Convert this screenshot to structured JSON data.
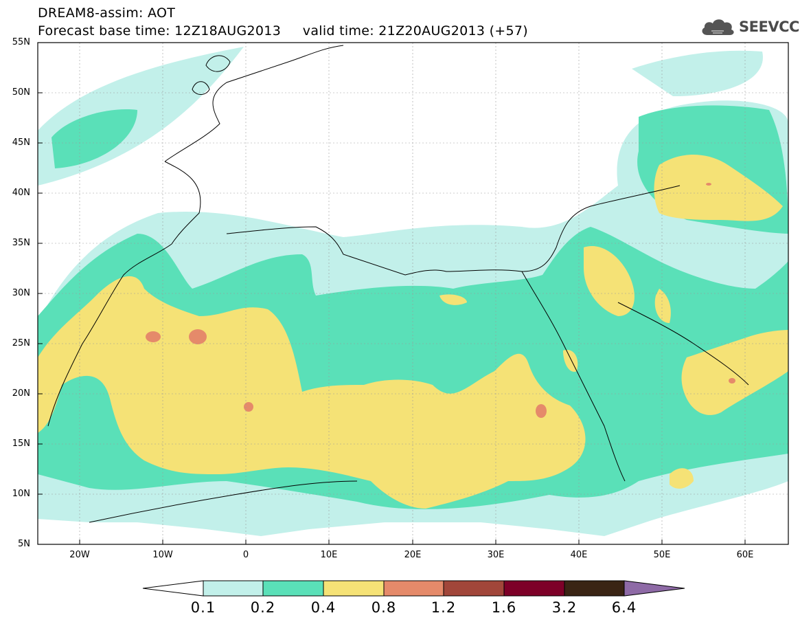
{
  "title": {
    "line1": "DREAM8-assim: AOT",
    "line2": "Forecast base time: 12Z18AUG2013     valid time: 21Z20AUG2013 (+57)"
  },
  "logo": {
    "text": "SEEVCCC",
    "icon": "cloud-icon"
  },
  "map": {
    "projection": "lat-lon",
    "lon_range": [
      -25,
      65
    ],
    "lat_range": [
      5,
      55
    ],
    "grid": true,
    "lat_labels": [
      "55N",
      "50N",
      "45N",
      "40N",
      "35N",
      "30N",
      "25N",
      "20N",
      "15N",
      "10N",
      "5N"
    ],
    "lon_labels": [
      "20W",
      "10W",
      "0",
      "10E",
      "20E",
      "30E",
      "40E",
      "50E",
      "60E"
    ]
  },
  "colorbar": {
    "labels": [
      "0.1",
      "0.2",
      "0.4",
      "0.8",
      "1.2",
      "1.6",
      "3.2",
      "6.4"
    ],
    "colors": [
      "#ffffff",
      "#c2f0ea",
      "#5ae0b8",
      "#f5e276",
      "#e58a6a",
      "#a1463a",
      "#7d0028",
      "#3a2414",
      "#8e6aa6"
    ]
  }
}
